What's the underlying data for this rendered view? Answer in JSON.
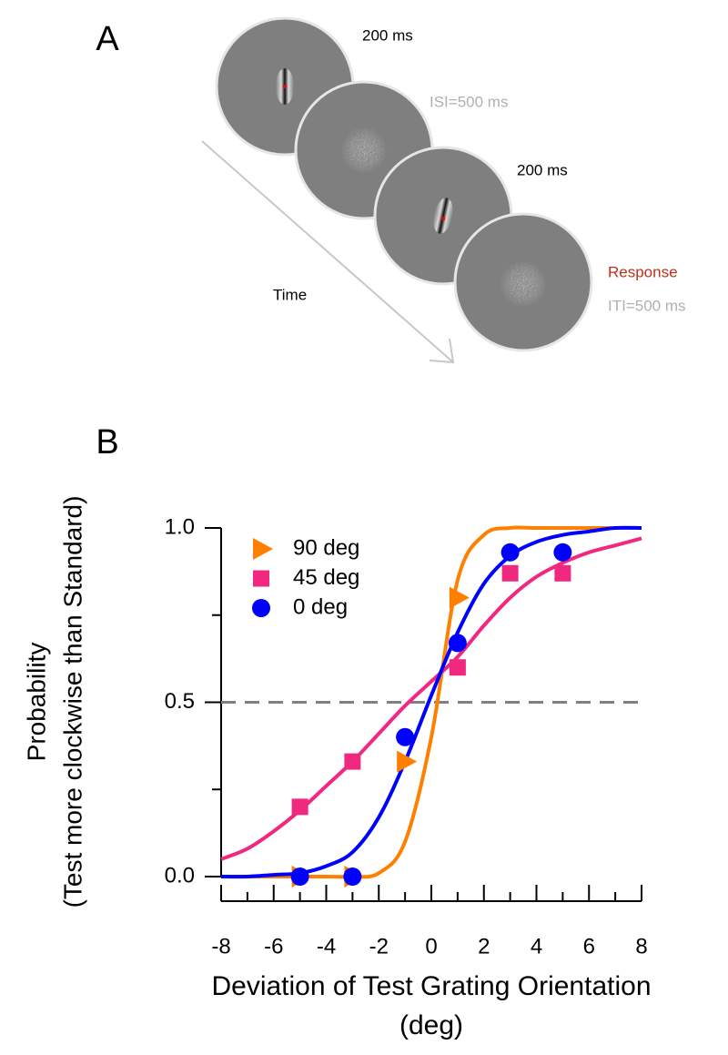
{
  "panel_a": {
    "label": "A",
    "time_label": "Time",
    "labels": [
      "200 ms",
      "ISI=500 ms",
      "200 ms",
      "Response",
      "ITI=500 ms"
    ]
  },
  "chart_data": {
    "type": "scatter",
    "panel_label": "B",
    "xlabel": [
      "Deviation of Test Grating Orientation",
      "(deg)"
    ],
    "ylabel": [
      "Probability",
      "(Test more clockwise than Standard)"
    ],
    "xlim": [
      -8,
      8
    ],
    "ylim": [
      0,
      1
    ],
    "xticks": [
      -8,
      -6,
      -4,
      -2,
      0,
      2,
      4,
      6,
      8
    ],
    "xminor": [
      -7,
      -5,
      -3,
      -1,
      1,
      3,
      5,
      7
    ],
    "yticks": [
      {
        "value": 0,
        "label": "0.0"
      },
      {
        "value": 0.5,
        "label": "0.5"
      },
      {
        "value": 1,
        "label": "1.0"
      }
    ],
    "yminor": [
      0.25,
      0.75
    ],
    "hline": 0.5,
    "legend": "upper left",
    "series": [
      {
        "name": "90 deg",
        "color": "#ff8000",
        "marker": "triangle",
        "x": [
          -5,
          -3,
          -1,
          1
        ],
        "values": [
          0,
          0,
          0.33,
          0.8
        ],
        "fit": {
          "x": [
            -8,
            -7,
            -6,
            -5,
            -4,
            -3,
            -2,
            -1,
            0,
            1,
            2,
            3,
            4,
            5,
            6,
            7,
            8
          ],
          "values": [
            0,
            0,
            0,
            0,
            0,
            0,
            0.01,
            0.1,
            0.4,
            0.85,
            0.98,
            1,
            1,
            1,
            1,
            1,
            1
          ]
        }
      },
      {
        "name": "45 deg",
        "color": "#f0287f",
        "marker": "square",
        "x": [
          -5,
          -3,
          1,
          3,
          5
        ],
        "values": [
          0.2,
          0.33,
          0.6,
          0.87,
          0.87
        ],
        "fit": {
          "x": [
            -8,
            -7,
            -6,
            -5,
            -4,
            -3,
            -2,
            -1,
            0,
            1,
            2,
            3,
            4,
            5,
            6,
            7,
            8
          ],
          "values": [
            0.05,
            0.08,
            0.13,
            0.19,
            0.26,
            0.33,
            0.41,
            0.49,
            0.56,
            0.63,
            0.72,
            0.8,
            0.86,
            0.9,
            0.93,
            0.95,
            0.97
          ]
        }
      },
      {
        "name": "0 deg",
        "color": "#0000ff",
        "marker": "circle",
        "x": [
          -5,
          -3,
          -1,
          1,
          3,
          5
        ],
        "values": [
          0,
          0,
          0.4,
          0.67,
          0.93,
          0.93
        ],
        "fit": {
          "x": [
            -8,
            -7,
            -6,
            -5,
            -4,
            -3,
            -2,
            -1,
            0,
            1,
            2,
            3,
            4,
            5,
            6,
            7,
            8
          ],
          "values": [
            0,
            0,
            0.005,
            0.01,
            0.03,
            0.07,
            0.17,
            0.33,
            0.52,
            0.7,
            0.84,
            0.92,
            0.96,
            0.98,
            0.99,
            1,
            1
          ]
        }
      }
    ]
  }
}
